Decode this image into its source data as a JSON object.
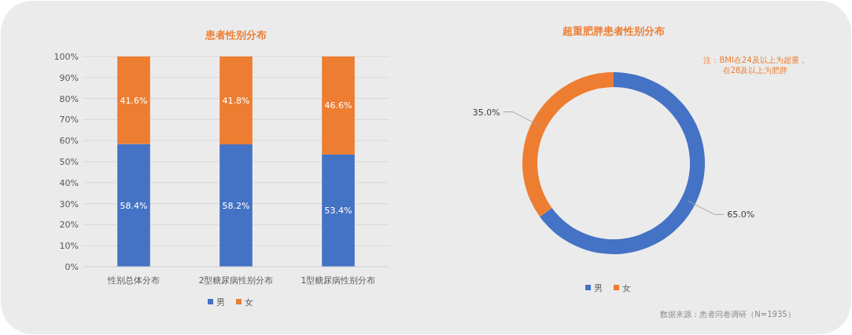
{
  "chart_data": [
    {
      "type": "bar",
      "title": "患者性别分布",
      "categories": [
        "性别总体分布",
        "2型糖尿病性别分布",
        "1型糖尿病性别分布"
      ],
      "stacked": true,
      "series": [
        {
          "name": "男",
          "color": "#4472c4",
          "values": [
            58.4,
            58.2,
            53.4
          ],
          "value_labels": [
            "58.4%",
            "58.2%",
            "53.4%"
          ]
        },
        {
          "name": "女",
          "color": "#ed7d31",
          "values": [
            41.6,
            41.8,
            46.6
          ],
          "value_labels": [
            "41.6%",
            "41.8%",
            "46.6%"
          ]
        }
      ],
      "ylim": [
        0,
        100
      ],
      "yticks": [
        {
          "value": 0,
          "label": "0%"
        },
        {
          "value": 10,
          "label": "10%"
        },
        {
          "value": 20,
          "label": "20%"
        },
        {
          "value": 30,
          "label": "30%"
        },
        {
          "value": 40,
          "label": "40%"
        },
        {
          "value": 50,
          "label": "50%"
        },
        {
          "value": 60,
          "label": "60%"
        },
        {
          "value": 70,
          "label": "70%"
        },
        {
          "value": 80,
          "label": "80%"
        },
        {
          "value": 90,
          "label": "90%"
        },
        {
          "value": 100,
          "label": "100%"
        }
      ],
      "grid": "y",
      "legend": "bottom"
    },
    {
      "type": "donut",
      "title": "超重肥胖患者性别分布",
      "categories": [
        "男",
        "女"
      ],
      "values": [
        65,
        35
      ],
      "value_labels": [
        "65.0%",
        "35.0%"
      ],
      "colors": [
        "#4472c4",
        "#ed7d31"
      ],
      "legend": "bottom",
      "annotations": [
        "注：BMI在24及以上为超重，在28及以上为肥胖",
        "数据来源：患者问卷调研（N=1935）"
      ]
    }
  ]
}
